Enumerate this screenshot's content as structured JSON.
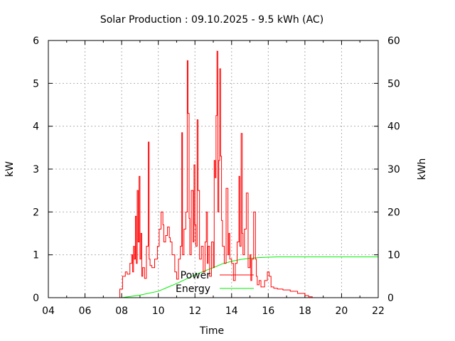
{
  "chart_data": {
    "type": "line",
    "title": "Solar Production : 09.10.2025 - 9.5 kWh (AC)",
    "xlabel": "Time",
    "ylabel": "kW",
    "y2label": "kWh",
    "xlim": [
      4,
      22
    ],
    "ylim": [
      0,
      6
    ],
    "y2lim": [
      0,
      60
    ],
    "xticks": [
      "04",
      "06",
      "08",
      "10",
      "12",
      "14",
      "16",
      "18",
      "20",
      "22"
    ],
    "yticks": [
      "0",
      "1",
      "2",
      "3",
      "4",
      "5",
      "6"
    ],
    "y2ticks": [
      "0",
      "10",
      "20",
      "30",
      "40",
      "50",
      "60"
    ],
    "grid": true,
    "legend_placement": "bottom-center",
    "series": [
      {
        "name": "Power",
        "axis": "y",
        "color": "#ff0000",
        "x": [
          7.75,
          7.9,
          8.05,
          8.2,
          8.3,
          8.45,
          8.55,
          8.6,
          8.65,
          8.7,
          8.75,
          8.8,
          8.85,
          8.9,
          8.95,
          9.0,
          9.05,
          9.1,
          9.15,
          9.25,
          9.35,
          9.45,
          9.5,
          9.55,
          9.65,
          9.8,
          9.95,
          10.05,
          10.15,
          10.25,
          10.3,
          10.4,
          10.5,
          10.6,
          10.65,
          10.75,
          10.9,
          11.0,
          11.1,
          11.2,
          11.28,
          11.32,
          11.4,
          11.5,
          11.58,
          11.62,
          11.68,
          11.72,
          11.8,
          11.9,
          11.95,
          12.0,
          12.05,
          12.12,
          12.17,
          12.25,
          12.35,
          12.45,
          12.55,
          12.62,
          12.68,
          12.72,
          12.8,
          12.9,
          13.0,
          13.05,
          13.1,
          13.15,
          13.2,
          13.25,
          13.3,
          13.35,
          13.4,
          13.45,
          13.5,
          13.6,
          13.7,
          13.8,
          13.85,
          13.9,
          14.0,
          14.1,
          14.2,
          14.3,
          14.4,
          14.45,
          14.52,
          14.58,
          14.62,
          14.7,
          14.8,
          14.9,
          15.0,
          15.05,
          15.1,
          15.2,
          15.3,
          15.35,
          15.4,
          15.5,
          15.6,
          15.8,
          15.95,
          16.05,
          16.15,
          16.3,
          16.5,
          16.8,
          17.2,
          17.6,
          18.0,
          18.2,
          18.4
        ],
        "values": [
          0,
          0.2,
          0.5,
          0.6,
          0.55,
          0.8,
          1.0,
          0.6,
          1.2,
          0.9,
          1.9,
          0.8,
          2.5,
          1.3,
          2.83,
          0.9,
          1.5,
          0.5,
          0.7,
          0.45,
          1.2,
          3.63,
          0.9,
          0.75,
          0.7,
          0.9,
          1.2,
          1.6,
          2.0,
          1.7,
          1.3,
          1.45,
          1.65,
          1.4,
          1.3,
          1.0,
          0.6,
          0.43,
          0.9,
          1.2,
          3.85,
          1.0,
          1.6,
          2.0,
          5.53,
          4.3,
          1.85,
          1.0,
          2.5,
          1.3,
          3.1,
          1.7,
          1.2,
          4.15,
          2.5,
          0.9,
          1.2,
          0.6,
          1.3,
          2.0,
          0.8,
          1.2,
          0.5,
          1.3,
          0.7,
          3.2,
          2.8,
          4.25,
          5.75,
          2.0,
          3.2,
          5.34,
          3.3,
          1.8,
          1.2,
          0.8,
          2.55,
          1.0,
          1.5,
          0.9,
          0.8,
          0.4,
          0.8,
          1.3,
          2.83,
          1.2,
          3.83,
          1.5,
          1.0,
          1.6,
          2.44,
          0.7,
          1.0,
          0.4,
          0.9,
          2.0,
          0.9,
          0.5,
          0.3,
          0.4,
          0.25,
          0.4,
          0.6,
          0.5,
          0.25,
          0.22,
          0.2,
          0.18,
          0.15,
          0.1,
          0.05,
          0.02,
          0
        ]
      },
      {
        "name": "Energy",
        "axis": "y2",
        "color": "#00ee00",
        "x": [
          8.0,
          9.0,
          10.0,
          10.5,
          11.0,
          11.5,
          12.0,
          12.5,
          13.0,
          13.5,
          14.0,
          14.5,
          15.0,
          15.5,
          16.0,
          16.5,
          17.0,
          22.0
        ],
        "values": [
          0,
          0.6,
          1.5,
          2.4,
          3.3,
          4.3,
          5.3,
          6.2,
          7.0,
          7.9,
          8.5,
          8.9,
          9.2,
          9.35,
          9.45,
          9.5,
          9.5,
          9.5
        ]
      }
    ]
  }
}
